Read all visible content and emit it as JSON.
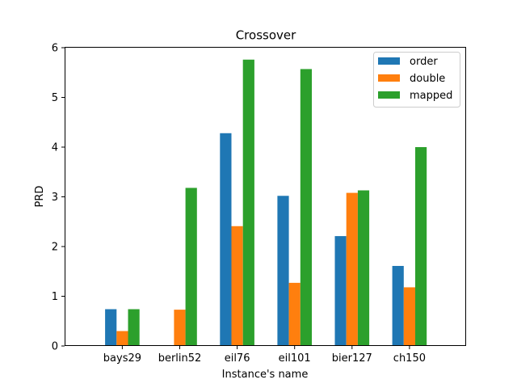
{
  "chart_data": {
    "type": "bar",
    "title": "Crossover",
    "xlabel": "Instance's name",
    "ylabel": "PRD",
    "ylim": [
      0,
      6
    ],
    "yticks": [
      "0",
      "1",
      "2",
      "3",
      "4",
      "5",
      "6"
    ],
    "categories": [
      "bays29",
      "berlin52",
      "eil76",
      "eil101",
      "bier127",
      "ch150"
    ],
    "series": [
      {
        "name": "order",
        "color": "#1f77b4",
        "values": [
          0.74,
          0.0,
          4.28,
          3.02,
          2.21,
          1.61
        ]
      },
      {
        "name": "double",
        "color": "#ff7f0e",
        "values": [
          0.3,
          0.73,
          2.41,
          1.27,
          3.08,
          1.18
        ]
      },
      {
        "name": "mapped",
        "color": "#2ca02c",
        "values": [
          0.74,
          3.18,
          5.76,
          5.57,
          3.13,
          4.0
        ]
      }
    ],
    "grid": false,
    "legend": "top-right"
  }
}
